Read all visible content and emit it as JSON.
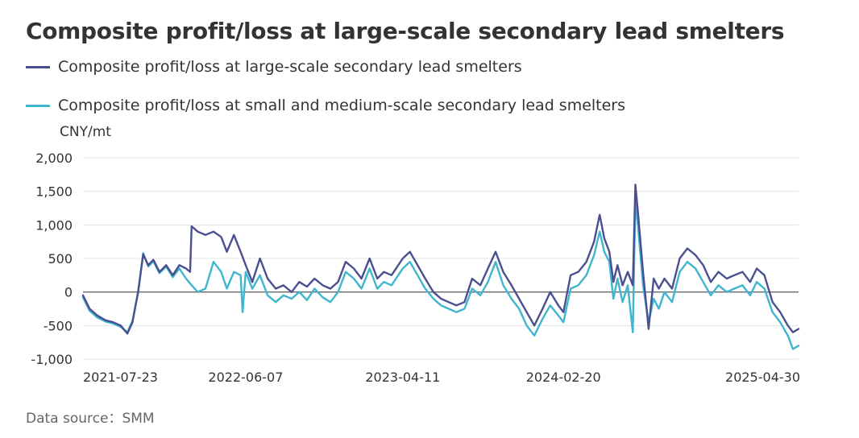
{
  "title": "Composite profit/loss at large-scale secondary lead smelters",
  "unit": "CNY/mt",
  "source": "Data source：SMM",
  "chart_data": {
    "type": "line",
    "title": "Composite profit/loss at large-scale secondary lead smelters",
    "ylabel": "CNY/mt",
    "xlabel": "",
    "ylim": [
      -1000,
      2000
    ],
    "y_ticks": [
      2000,
      1500,
      1000,
      500,
      0,
      -500,
      -1000
    ],
    "y_tick_labels": [
      "2,000",
      "1,500",
      "1,000",
      "500",
      "0",
      "-500",
      "-1,000"
    ],
    "x_ticks": [
      "2021-07-23",
      "2022-06-07",
      "2023-04-11",
      "2024-02-20",
      "2025-04-30"
    ],
    "x_range": [
      "2021-07-23",
      "2025-05-26"
    ],
    "grid": true,
    "legend_position": "top-left",
    "series": [
      {
        "name": "Composite profit/loss at large-scale secondary lead smelters",
        "color": "#4a4f8f",
        "points": [
          [
            "2021-07-23",
            -50
          ],
          [
            "2021-08-05",
            -250
          ],
          [
            "2021-08-20",
            -350
          ],
          [
            "2021-09-05",
            -420
          ],
          [
            "2021-09-20",
            -450
          ],
          [
            "2021-10-05",
            -500
          ],
          [
            "2021-10-18",
            -620
          ],
          [
            "2021-10-28",
            -450
          ],
          [
            "2021-11-08",
            0
          ],
          [
            "2021-11-18",
            560
          ],
          [
            "2021-11-28",
            400
          ],
          [
            "2021-12-08",
            480
          ],
          [
            "2021-12-20",
            300
          ],
          [
            "2022-01-02",
            400
          ],
          [
            "2022-01-15",
            250
          ],
          [
            "2022-01-28",
            400
          ],
          [
            "2022-02-10",
            350
          ],
          [
            "2022-02-18",
            300
          ],
          [
            "2022-02-21",
            980
          ],
          [
            "2022-03-05",
            900
          ],
          [
            "2022-03-20",
            850
          ],
          [
            "2022-04-05",
            900
          ],
          [
            "2022-04-20",
            820
          ],
          [
            "2022-05-01",
            600
          ],
          [
            "2022-05-15",
            850
          ],
          [
            "2022-05-28",
            600
          ],
          [
            "2022-06-07",
            400
          ],
          [
            "2022-06-20",
            150
          ],
          [
            "2022-07-05",
            500
          ],
          [
            "2022-07-20",
            200
          ],
          [
            "2022-08-05",
            50
          ],
          [
            "2022-08-20",
            100
          ],
          [
            "2022-09-05",
            0
          ],
          [
            "2022-09-20",
            150
          ],
          [
            "2022-10-05",
            80
          ],
          [
            "2022-10-20",
            200
          ],
          [
            "2022-11-05",
            100
          ],
          [
            "2022-11-20",
            50
          ],
          [
            "2022-12-05",
            150
          ],
          [
            "2022-12-20",
            450
          ],
          [
            "2023-01-05",
            350
          ],
          [
            "2023-01-20",
            200
          ],
          [
            "2023-02-05",
            500
          ],
          [
            "2023-02-20",
            200
          ],
          [
            "2023-03-05",
            300
          ],
          [
            "2023-03-20",
            250
          ],
          [
            "2023-04-11",
            500
          ],
          [
            "2023-04-25",
            600
          ],
          [
            "2023-05-10",
            400
          ],
          [
            "2023-05-25",
            200
          ],
          [
            "2023-06-10",
            0
          ],
          [
            "2023-06-25",
            -100
          ],
          [
            "2023-07-10",
            -150
          ],
          [
            "2023-07-25",
            -200
          ],
          [
            "2023-08-10",
            -150
          ],
          [
            "2023-08-25",
            200
          ],
          [
            "2023-09-10",
            100
          ],
          [
            "2023-09-25",
            350
          ],
          [
            "2023-10-10",
            600
          ],
          [
            "2023-10-25",
            300
          ],
          [
            "2023-11-10",
            100
          ],
          [
            "2023-11-25",
            -100
          ],
          [
            "2023-12-10",
            -300
          ],
          [
            "2023-12-25",
            -500
          ],
          [
            "2024-01-10",
            -250
          ],
          [
            "2024-01-25",
            0
          ],
          [
            "2024-02-10",
            -200
          ],
          [
            "2024-02-20",
            -300
          ],
          [
            "2024-03-05",
            250
          ],
          [
            "2024-03-20",
            300
          ],
          [
            "2024-04-05",
            450
          ],
          [
            "2024-04-20",
            750
          ],
          [
            "2024-05-01",
            1150
          ],
          [
            "2024-05-10",
            800
          ],
          [
            "2024-05-20",
            600
          ],
          [
            "2024-05-28",
            150
          ],
          [
            "2024-06-05",
            400
          ],
          [
            "2024-06-15",
            100
          ],
          [
            "2024-06-25",
            300
          ],
          [
            "2024-07-05",
            100
          ],
          [
            "2024-07-10",
            1600
          ],
          [
            "2024-07-15",
            1200
          ],
          [
            "2024-07-25",
            300
          ],
          [
            "2024-08-05",
            -550
          ],
          [
            "2024-08-15",
            200
          ],
          [
            "2024-08-25",
            50
          ],
          [
            "2024-09-05",
            200
          ],
          [
            "2024-09-20",
            50
          ],
          [
            "2024-10-05",
            500
          ],
          [
            "2024-10-20",
            650
          ],
          [
            "2024-11-05",
            550
          ],
          [
            "2024-11-20",
            400
          ],
          [
            "2024-12-05",
            150
          ],
          [
            "2024-12-20",
            300
          ],
          [
            "2025-01-05",
            200
          ],
          [
            "2025-01-20",
            250
          ],
          [
            "2025-02-05",
            300
          ],
          [
            "2025-02-20",
            150
          ],
          [
            "2025-03-05",
            350
          ],
          [
            "2025-03-20",
            250
          ],
          [
            "2025-04-05",
            -150
          ],
          [
            "2025-04-20",
            -300
          ],
          [
            "2025-05-05",
            -500
          ],
          [
            "2025-05-15",
            -600
          ],
          [
            "2025-05-26",
            -550
          ]
        ]
      },
      {
        "name": "Composite profit/loss at small and medium-scale secondary lead smelters",
        "color": "#3fb5ce",
        "points": [
          [
            "2021-07-23",
            -80
          ],
          [
            "2021-08-05",
            -280
          ],
          [
            "2021-08-20",
            -380
          ],
          [
            "2021-09-05",
            -440
          ],
          [
            "2021-09-20",
            -470
          ],
          [
            "2021-10-05",
            -520
          ],
          [
            "2021-10-18",
            -600
          ],
          [
            "2021-10-28",
            -430
          ],
          [
            "2021-11-08",
            0
          ],
          [
            "2021-11-18",
            580
          ],
          [
            "2021-11-28",
            380
          ],
          [
            "2021-12-08",
            460
          ],
          [
            "2021-12-20",
            280
          ],
          [
            "2022-01-02",
            380
          ],
          [
            "2022-01-15",
            220
          ],
          [
            "2022-01-28",
            350
          ],
          [
            "2022-02-10",
            200
          ],
          [
            "2022-02-21",
            100
          ],
          [
            "2022-03-05",
            0
          ],
          [
            "2022-03-20",
            50
          ],
          [
            "2022-04-05",
            450
          ],
          [
            "2022-04-20",
            300
          ],
          [
            "2022-05-01",
            50
          ],
          [
            "2022-05-15",
            300
          ],
          [
            "2022-05-28",
            250
          ],
          [
            "2022-06-01",
            -300
          ],
          [
            "2022-06-07",
            300
          ],
          [
            "2022-06-20",
            50
          ],
          [
            "2022-07-05",
            250
          ],
          [
            "2022-07-20",
            -50
          ],
          [
            "2022-08-05",
            -150
          ],
          [
            "2022-08-20",
            -50
          ],
          [
            "2022-09-05",
            -100
          ],
          [
            "2022-09-20",
            0
          ],
          [
            "2022-10-05",
            -120
          ],
          [
            "2022-10-20",
            50
          ],
          [
            "2022-11-05",
            -80
          ],
          [
            "2022-11-20",
            -150
          ],
          [
            "2022-12-05",
            0
          ],
          [
            "2022-12-20",
            300
          ],
          [
            "2023-01-05",
            200
          ],
          [
            "2023-01-20",
            50
          ],
          [
            "2023-02-05",
            350
          ],
          [
            "2023-02-20",
            50
          ],
          [
            "2023-03-05",
            150
          ],
          [
            "2023-03-20",
            100
          ],
          [
            "2023-04-11",
            350
          ],
          [
            "2023-04-25",
            450
          ],
          [
            "2023-05-10",
            250
          ],
          [
            "2023-05-25",
            50
          ],
          [
            "2023-06-10",
            -100
          ],
          [
            "2023-06-25",
            -200
          ],
          [
            "2023-07-10",
            -250
          ],
          [
            "2023-07-25",
            -300
          ],
          [
            "2023-08-10",
            -250
          ],
          [
            "2023-08-25",
            50
          ],
          [
            "2023-09-10",
            -50
          ],
          [
            "2023-09-25",
            150
          ],
          [
            "2023-10-10",
            450
          ],
          [
            "2023-10-25",
            100
          ],
          [
            "2023-11-10",
            -100
          ],
          [
            "2023-11-25",
            -250
          ],
          [
            "2023-12-10",
            -500
          ],
          [
            "2023-12-25",
            -650
          ],
          [
            "2024-01-10",
            -400
          ],
          [
            "2024-01-25",
            -200
          ],
          [
            "2024-02-10",
            -350
          ],
          [
            "2024-02-20",
            -450
          ],
          [
            "2024-03-05",
            50
          ],
          [
            "2024-03-20",
            100
          ],
          [
            "2024-04-05",
            250
          ],
          [
            "2024-04-20",
            550
          ],
          [
            "2024-05-01",
            900
          ],
          [
            "2024-05-10",
            600
          ],
          [
            "2024-05-20",
            450
          ],
          [
            "2024-05-28",
            -100
          ],
          [
            "2024-06-05",
            200
          ],
          [
            "2024-06-15",
            -150
          ],
          [
            "2024-06-25",
            100
          ],
          [
            "2024-07-05",
            -600
          ],
          [
            "2024-07-10",
            1350
          ],
          [
            "2024-07-15",
            1000
          ],
          [
            "2024-07-25",
            100
          ],
          [
            "2024-08-05",
            -450
          ],
          [
            "2024-08-15",
            -100
          ],
          [
            "2024-08-25",
            -250
          ],
          [
            "2024-09-05",
            0
          ],
          [
            "2024-09-20",
            -150
          ],
          [
            "2024-10-05",
            300
          ],
          [
            "2024-10-20",
            450
          ],
          [
            "2024-11-05",
            350
          ],
          [
            "2024-11-20",
            150
          ],
          [
            "2024-12-05",
            -50
          ],
          [
            "2024-12-20",
            100
          ],
          [
            "2025-01-05",
            0
          ],
          [
            "2025-01-20",
            50
          ],
          [
            "2025-02-05",
            100
          ],
          [
            "2025-02-20",
            -50
          ],
          [
            "2025-03-05",
            150
          ],
          [
            "2025-03-20",
            50
          ],
          [
            "2025-04-05",
            -300
          ],
          [
            "2025-04-20",
            -450
          ],
          [
            "2025-05-05",
            -650
          ],
          [
            "2025-05-15",
            -850
          ],
          [
            "2025-05-26",
            -800
          ]
        ]
      }
    ]
  }
}
